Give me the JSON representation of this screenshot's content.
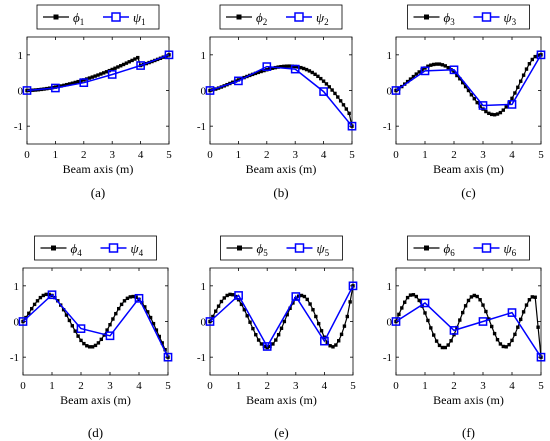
{
  "chart_data": [
    {
      "type": "line",
      "caption": "(a)",
      "xlabel": "Beam axis (m)",
      "ylabel": "",
      "xlim": [
        0,
        5
      ],
      "ylim": [
        -1.5,
        1.5
      ],
      "xticks": [
        "0",
        "1",
        "2",
        "3",
        "4",
        "5"
      ],
      "yticks": [
        "-1",
        "0",
        "1"
      ],
      "legend_position": "top",
      "series": [
        {
          "sym": "ϕ",
          "sub": "1",
          "color": "#000000",
          "marker": "filled-square",
          "x": [
            0,
            0.1,
            0.2,
            0.3,
            0.4,
            0.5,
            0.6,
            0.7,
            0.8,
            0.9,
            1.0,
            1.1,
            1.2,
            1.3,
            1.4,
            1.5,
            1.6,
            1.7,
            1.8,
            1.9,
            2.0,
            2.1,
            2.2,
            2.3,
            2.4,
            2.5,
            2.6,
            2.7,
            2.8,
            2.9,
            3.0,
            3.1,
            3.2,
            3.3,
            3.4,
            3.5,
            3.6,
            3.7,
            3.8,
            3.9,
            4.0,
            4.1,
            4.2,
            4.3,
            4.4,
            4.5,
            4.6,
            4.7,
            4.8,
            4.9,
            5.0
          ],
          "y": [
            0,
            0.003,
            0.008,
            0.014,
            0.022,
            0.031,
            0.041,
            0.053,
            0.066,
            0.08,
            0.094,
            0.11,
            0.127,
            0.145,
            0.164,
            0.184,
            0.204,
            0.226,
            0.249,
            0.272,
            0.297,
            0.322,
            0.349,
            0.376,
            0.404,
            0.433,
            0.463,
            0.494,
            0.525,
            0.557,
            0.59,
            0.624,
            0.659,
            0.694,
            0.73,
            0.767,
            0.805,
            0.843,
            0.882,
            0.922,
            0.7,
            0.727,
            0.755,
            0.783,
            0.812,
            0.842,
            0.872,
            0.903,
            0.935,
            0.967,
            1.0
          ]
        },
        {
          "sym": "ψ",
          "sub": "1",
          "color": "#0000ff",
          "marker": "open-square",
          "x": [
            0,
            1,
            2,
            3,
            4,
            5
          ],
          "y": [
            0,
            0.07,
            0.22,
            0.45,
            0.7,
            1.0
          ]
        }
      ]
    },
    {
      "type": "line",
      "caption": "(b)",
      "xlabel": "Beam axis (m)",
      "ylabel": "",
      "xlim": [
        0,
        5
      ],
      "ylim": [
        -1.5,
        1.5
      ],
      "xticks": [
        "0",
        "1",
        "2",
        "3",
        "4",
        "5"
      ],
      "yticks": [
        "-1",
        "0",
        "1"
      ],
      "legend_position": "top",
      "series": [
        {
          "sym": "ϕ",
          "sub": "2",
          "color": "#000000",
          "marker": "filled-square",
          "x": [
            0,
            0.1,
            0.2,
            0.3,
            0.4,
            0.5,
            0.6,
            0.7,
            0.8,
            0.9,
            1.0,
            1.1,
            1.2,
            1.3,
            1.4,
            1.5,
            1.6,
            1.7,
            1.8,
            1.9,
            2.0,
            2.1,
            2.2,
            2.3,
            2.4,
            2.5,
            2.6,
            2.7,
            2.8,
            2.9,
            3.0,
            3.1,
            3.2,
            3.3,
            3.4,
            3.5,
            3.6,
            3.7,
            3.8,
            3.9,
            4.0,
            4.1,
            4.2,
            4.3,
            4.4,
            4.5,
            4.6,
            4.7,
            4.8,
            4.9,
            5.0
          ],
          "y": [
            0,
            0.018,
            0.041,
            0.068,
            0.098,
            0.13,
            0.163,
            0.197,
            0.231,
            0.264,
            0.297,
            0.33,
            0.362,
            0.393,
            0.423,
            0.452,
            0.48,
            0.507,
            0.533,
            0.558,
            0.582,
            0.604,
            0.624,
            0.641,
            0.656,
            0.668,
            0.677,
            0.682,
            0.684,
            0.681,
            0.673,
            0.66,
            0.641,
            0.617,
            0.586,
            0.549,
            0.505,
            0.454,
            0.397,
            0.333,
            0.262,
            0.185,
            0.102,
            0.013,
            -0.082,
            -0.183,
            -0.29,
            -0.402,
            -0.519,
            -0.641,
            -1.0
          ]
        },
        {
          "sym": "ψ",
          "sub": "2",
          "color": "#0000ff",
          "marker": "open-square",
          "x": [
            0,
            1,
            2,
            3,
            4,
            5
          ],
          "y": [
            0,
            0.27,
            0.67,
            0.6,
            -0.03,
            -1.0
          ]
        }
      ]
    },
    {
      "type": "line",
      "caption": "(c)",
      "xlabel": "Beam axis (m)",
      "ylabel": "",
      "xlim": [
        0,
        5
      ],
      "ylim": [
        -1.5,
        1.5
      ],
      "xticks": [
        "0",
        "1",
        "2",
        "3",
        "4",
        "5"
      ],
      "yticks": [
        "-1",
        "0",
        "1"
      ],
      "legend_position": "top",
      "series": [
        {
          "sym": "ϕ",
          "sub": "3",
          "color": "#000000",
          "marker": "filled-square",
          "x": [
            0,
            0.1,
            0.2,
            0.3,
            0.4,
            0.5,
            0.6,
            0.7,
            0.8,
            0.9,
            1.0,
            1.1,
            1.2,
            1.3,
            1.4,
            1.5,
            1.6,
            1.7,
            1.8,
            1.9,
            2.0,
            2.1,
            2.2,
            2.3,
            2.4,
            2.5,
            2.6,
            2.7,
            2.8,
            2.9,
            3.0,
            3.1,
            3.2,
            3.3,
            3.4,
            3.5,
            3.6,
            3.7,
            3.8,
            3.9,
            4.0,
            4.1,
            4.2,
            4.3,
            4.4,
            4.5,
            4.6,
            4.7,
            4.8,
            4.9,
            5.0
          ],
          "y": [
            0,
            0.05,
            0.11,
            0.18,
            0.25,
            0.32,
            0.39,
            0.46,
            0.52,
            0.58,
            0.63,
            0.68,
            0.71,
            0.73,
            0.74,
            0.74,
            0.72,
            0.69,
            0.64,
            0.58,
            0.51,
            0.42,
            0.33,
            0.22,
            0.11,
            0.0,
            -0.12,
            -0.23,
            -0.34,
            -0.44,
            -0.52,
            -0.59,
            -0.64,
            -0.67,
            -0.68,
            -0.66,
            -0.62,
            -0.55,
            -0.46,
            -0.35,
            -0.22,
            -0.07,
            0.09,
            0.26,
            0.43,
            0.6,
            0.75,
            0.87,
            0.95,
            0.99,
            1.0
          ]
        },
        {
          "sym": "ψ",
          "sub": "3",
          "color": "#0000ff",
          "marker": "open-square",
          "x": [
            0,
            1,
            2,
            3,
            4,
            5
          ],
          "y": [
            0,
            0.55,
            0.58,
            -0.42,
            -0.39,
            1.0
          ]
        }
      ]
    },
    {
      "type": "line",
      "caption": "(d)",
      "xlabel": "Beam axis (m)",
      "ylabel": "",
      "xlim": [
        0,
        5
      ],
      "ylim": [
        -1.5,
        1.5
      ],
      "xticks": [
        "0",
        "1",
        "2",
        "3",
        "4",
        "5"
      ],
      "yticks": [
        "-1",
        "0",
        "1"
      ],
      "legend_position": "top",
      "series": [
        {
          "sym": "ϕ",
          "sub": "4",
          "color": "#000000",
          "marker": "filled-square",
          "x": [
            0,
            0.1,
            0.2,
            0.3,
            0.4,
            0.5,
            0.6,
            0.7,
            0.8,
            0.9,
            1.0,
            1.1,
            1.2,
            1.3,
            1.4,
            1.5,
            1.6,
            1.7,
            1.8,
            1.9,
            2.0,
            2.1,
            2.2,
            2.3,
            2.4,
            2.5,
            2.6,
            2.7,
            2.8,
            2.9,
            3.0,
            3.1,
            3.2,
            3.3,
            3.4,
            3.5,
            3.6,
            3.7,
            3.8,
            3.9,
            4.0,
            4.1,
            4.2,
            4.3,
            4.4,
            4.5,
            4.6,
            4.7,
            4.8,
            4.9,
            5.0
          ],
          "y": [
            0,
            0.11,
            0.23,
            0.36,
            0.48,
            0.58,
            0.67,
            0.73,
            0.76,
            0.76,
            0.73,
            0.67,
            0.58,
            0.46,
            0.33,
            0.18,
            0.03,
            -0.12,
            -0.27,
            -0.41,
            -0.53,
            -0.62,
            -0.68,
            -0.71,
            -0.71,
            -0.67,
            -0.6,
            -0.5,
            -0.38,
            -0.24,
            -0.09,
            0.07,
            0.22,
            0.36,
            0.48,
            0.58,
            0.65,
            0.69,
            0.7,
            0.68,
            0.62,
            0.53,
            0.41,
            0.27,
            0.11,
            -0.06,
            -0.24,
            -0.42,
            -0.6,
            -0.79,
            -1.0
          ]
        },
        {
          "sym": "ψ",
          "sub": "4",
          "color": "#0000ff",
          "marker": "open-square",
          "x": [
            0,
            1,
            2,
            3,
            4,
            5
          ],
          "y": [
            0,
            0.75,
            -0.2,
            -0.4,
            0.65,
            -1.0
          ]
        }
      ]
    },
    {
      "type": "line",
      "caption": "(e)",
      "xlabel": "Beam axis (m)",
      "ylabel": "",
      "xlim": [
        0,
        5
      ],
      "ylim": [
        -1.5,
        1.5
      ],
      "xticks": [
        "0",
        "1",
        "2",
        "3",
        "4",
        "5"
      ],
      "yticks": [
        "-1",
        "0",
        "1"
      ],
      "legend_position": "top",
      "series": [
        {
          "sym": "ϕ",
          "sub": "5",
          "color": "#000000",
          "marker": "filled-square",
          "x": [
            0,
            0.1,
            0.2,
            0.3,
            0.4,
            0.5,
            0.6,
            0.7,
            0.8,
            0.9,
            1.0,
            1.1,
            1.2,
            1.3,
            1.4,
            1.5,
            1.6,
            1.7,
            1.8,
            1.9,
            2.0,
            2.1,
            2.2,
            2.3,
            2.4,
            2.5,
            2.6,
            2.7,
            2.8,
            2.9,
            3.0,
            3.1,
            3.2,
            3.3,
            3.4,
            3.5,
            3.6,
            3.7,
            3.8,
            3.9,
            4.0,
            4.1,
            4.2,
            4.3,
            4.4,
            4.5,
            4.6,
            4.7,
            4.8,
            4.9,
            5.0
          ],
          "y": [
            0,
            0.14,
            0.29,
            0.43,
            0.56,
            0.66,
            0.73,
            0.76,
            0.75,
            0.7,
            0.61,
            0.48,
            0.33,
            0.16,
            -0.02,
            -0.2,
            -0.37,
            -0.52,
            -0.63,
            -0.7,
            -0.73,
            -0.7,
            -0.63,
            -0.52,
            -0.37,
            -0.19,
            0.0,
            0.19,
            0.37,
            0.52,
            0.64,
            0.71,
            0.73,
            0.7,
            0.62,
            0.49,
            0.33,
            0.14,
            -0.06,
            -0.26,
            -0.44,
            -0.59,
            -0.68,
            -0.71,
            -0.66,
            -0.54,
            -0.36,
            -0.13,
            0.14,
            0.55,
            1.0
          ]
        },
        {
          "sym": "ψ",
          "sub": "5",
          "color": "#0000ff",
          "marker": "open-square",
          "x": [
            0,
            1,
            2,
            3,
            4,
            5
          ],
          "y": [
            0,
            0.73,
            -0.7,
            0.7,
            -0.55,
            1.0
          ]
        }
      ]
    },
    {
      "type": "line",
      "caption": "(f)",
      "xlabel": "Beam axis (m)",
      "ylabel": "",
      "xlim": [
        0,
        5
      ],
      "ylim": [
        -1.5,
        1.5
      ],
      "xticks": [
        "0",
        "1",
        "2",
        "3",
        "4",
        "5"
      ],
      "yticks": [
        "-1",
        "0",
        "1"
      ],
      "legend_position": "top",
      "series": [
        {
          "sym": "ϕ",
          "sub": "6",
          "color": "#000000",
          "marker": "filled-square",
          "x": [
            0,
            0.1,
            0.2,
            0.3,
            0.4,
            0.5,
            0.6,
            0.7,
            0.8,
            0.9,
            1.0,
            1.1,
            1.2,
            1.3,
            1.4,
            1.5,
            1.6,
            1.7,
            1.8,
            1.9,
            2.0,
            2.1,
            2.2,
            2.3,
            2.4,
            2.5,
            2.6,
            2.7,
            2.8,
            2.9,
            3.0,
            3.1,
            3.2,
            3.3,
            3.4,
            3.5,
            3.6,
            3.7,
            3.8,
            3.9,
            4.0,
            4.1,
            4.2,
            4.3,
            4.4,
            4.5,
            4.6,
            4.7,
            4.8,
            4.9,
            5.0
          ],
          "y": [
            0,
            0.2,
            0.38,
            0.54,
            0.67,
            0.74,
            0.75,
            0.7,
            0.59,
            0.43,
            0.24,
            0.03,
            -0.18,
            -0.38,
            -0.55,
            -0.67,
            -0.73,
            -0.73,
            -0.66,
            -0.54,
            -0.37,
            -0.17,
            0.04,
            0.25,
            0.44,
            0.59,
            0.69,
            0.73,
            0.7,
            0.61,
            0.46,
            0.28,
            0.07,
            -0.14,
            -0.34,
            -0.51,
            -0.63,
            -0.7,
            -0.71,
            -0.65,
            -0.53,
            -0.36,
            -0.16,
            0.06,
            0.27,
            0.46,
            0.61,
            0.69,
            0.68,
            -0.16,
            -1.0
          ]
        },
        {
          "sym": "ψ",
          "sub": "6",
          "color": "#0000ff",
          "marker": "open-square",
          "x": [
            0,
            1,
            2,
            3,
            4,
            5
          ],
          "y": [
            0,
            0.52,
            -0.25,
            0.0,
            0.25,
            -1.0
          ]
        }
      ]
    }
  ]
}
